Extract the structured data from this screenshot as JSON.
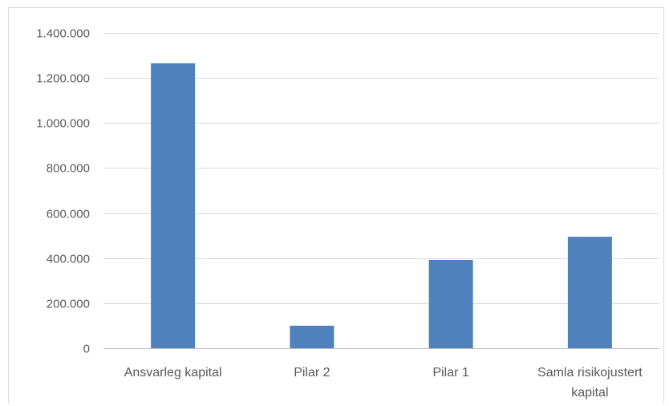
{
  "chart_data": {
    "type": "bar",
    "categories": [
      [
        "Ansvarleg kapital"
      ],
      [
        "Pilar 2"
      ],
      [
        "Pilar 1"
      ],
      [
        "Samla risikojustert",
        "kapital"
      ]
    ],
    "values": [
      1265000,
      100000,
      392000,
      495000
    ],
    "yticks": [
      "0",
      "200.000",
      "400.000",
      "600.000",
      "800.000",
      "1.000.000",
      "1.200.000",
      "1.400.000"
    ],
    "ylim": [
      0,
      1400000
    ],
    "grid": true,
    "legend": "none",
    "bar_color": "#4f81bd",
    "title": "",
    "xlabel": "",
    "ylabel": ""
  }
}
